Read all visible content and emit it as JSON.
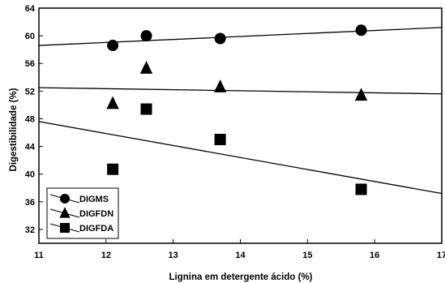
{
  "chart_data": {
    "type": "scatter",
    "xlabel": "Lignina em detergente ácido (%)",
    "ylabel": "Digestibilidade  (%)",
    "xlim": [
      11,
      17
    ],
    "ylim": [
      30,
      64
    ],
    "xticks": [
      "11",
      "12",
      "13",
      "14",
      "15",
      "16",
      "17"
    ],
    "yticks": [
      "32",
      "36",
      "40",
      "44",
      "48",
      "52",
      "56",
      "60",
      "64"
    ],
    "grid": false,
    "legend_position": "bottom-left",
    "series": [
      {
        "name": "DIGMS",
        "marker": "circle",
        "points": [
          [
            12.1,
            58.6
          ],
          [
            12.6,
            60.0
          ],
          [
            13.7,
            59.6
          ],
          [
            15.8,
            60.8
          ]
        ],
        "trend": [
          [
            11,
            58.6
          ],
          [
            17,
            61.2
          ]
        ]
      },
      {
        "name": "DIGFDN",
        "marker": "triangle",
        "points": [
          [
            12.1,
            50.2
          ],
          [
            12.6,
            55.3
          ],
          [
            13.7,
            52.6
          ],
          [
            15.8,
            51.4
          ]
        ],
        "trend": [
          [
            11,
            52.5
          ],
          [
            17,
            51.6
          ]
        ]
      },
      {
        "name": "DIGFDA",
        "marker": "square",
        "points": [
          [
            12.1,
            40.7
          ],
          [
            12.6,
            49.4
          ],
          [
            13.7,
            45.0
          ],
          [
            15.8,
            37.8
          ]
        ],
        "trend": [
          [
            11,
            47.6
          ],
          [
            17,
            37.2
          ]
        ]
      }
    ]
  }
}
